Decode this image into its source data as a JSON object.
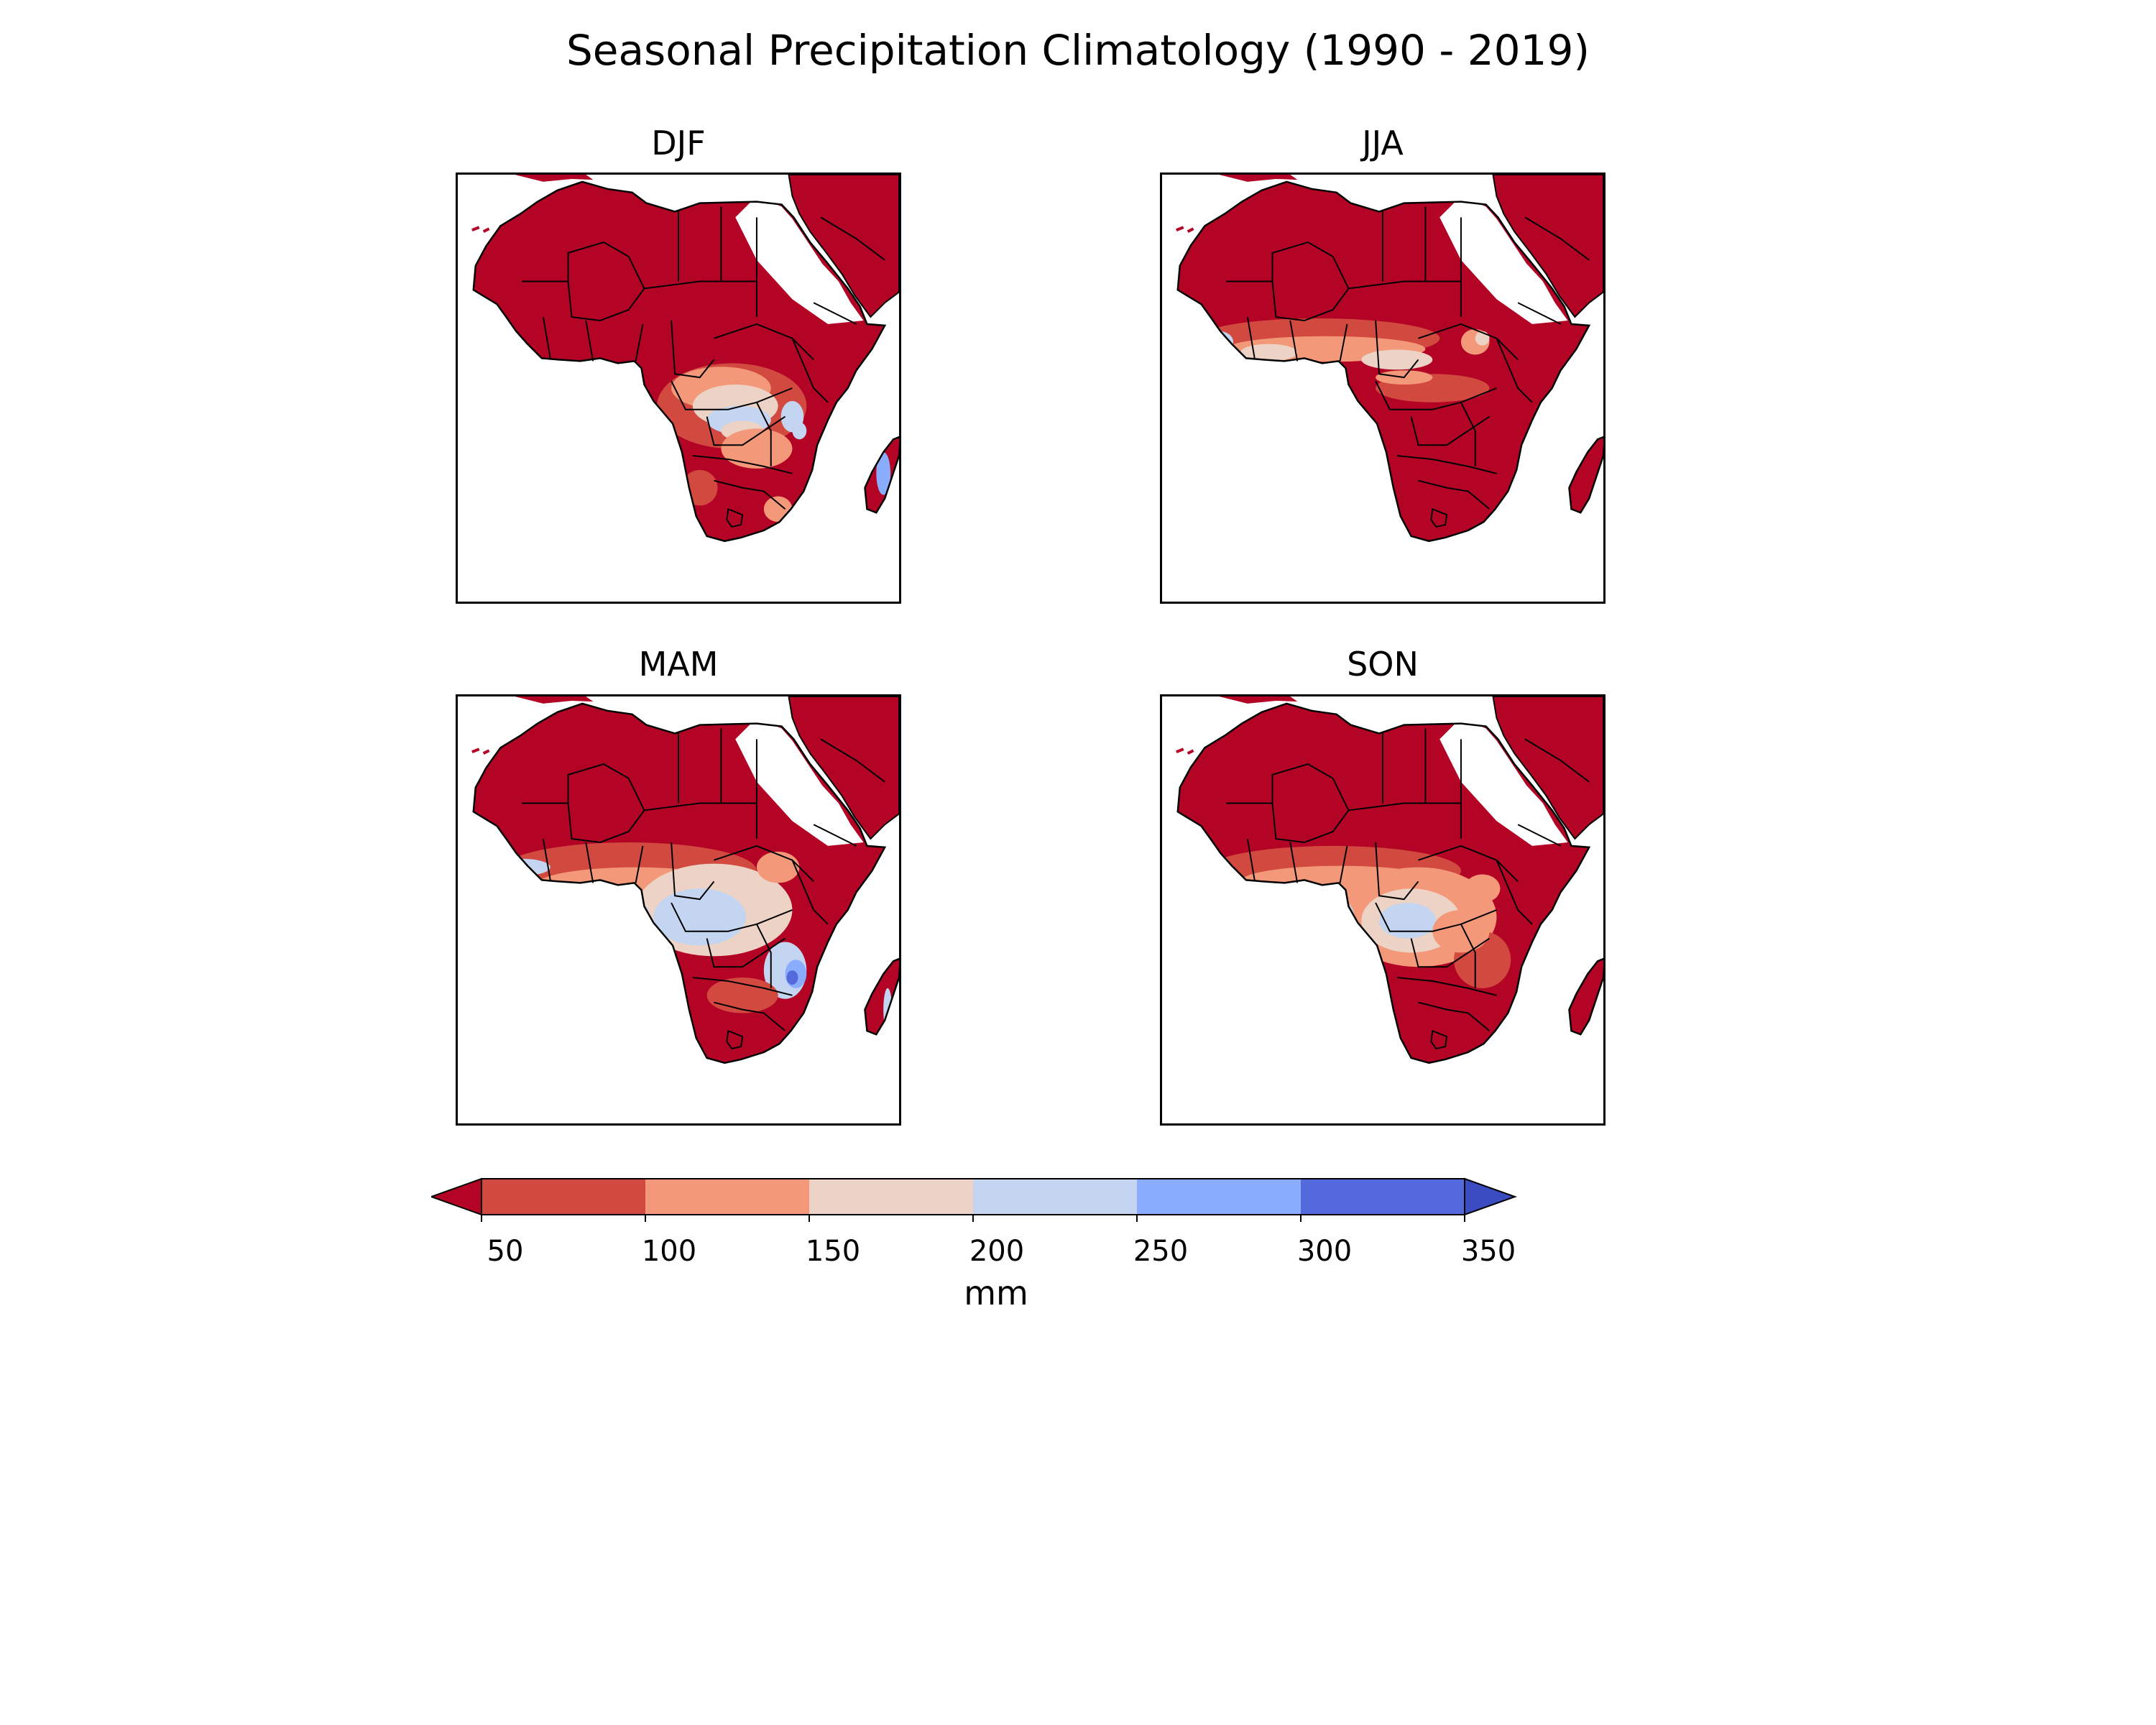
{
  "title": "Seasonal Precipitation Climatology (1990 - 2019)",
  "panels": [
    {
      "id": "djf",
      "title": "DJF",
      "fill_fractions": [
        0.62,
        0.14,
        0.1,
        0.1,
        0.03,
        0.01
      ]
    },
    {
      "id": "jja",
      "title": "JJA",
      "fill_fractions": [
        0.72,
        0.14,
        0.09,
        0.03,
        0.02,
        0.0
      ]
    },
    {
      "id": "mam",
      "title": "MAM",
      "fill_fractions": [
        0.63,
        0.14,
        0.11,
        0.08,
        0.03,
        0.01
      ]
    },
    {
      "id": "son",
      "title": "SON",
      "fill_fractions": [
        0.64,
        0.16,
        0.1,
        0.08,
        0.02,
        0.0
      ]
    }
  ],
  "colorbar": {
    "unit": "mm",
    "ticks": [
      "50",
      "100",
      "150",
      "200",
      "250",
      "300",
      "350"
    ],
    "levels": [
      50,
      100,
      150,
      200,
      250,
      300,
      350
    ],
    "extend": "both",
    "colors": {
      "under": "#b40426",
      "bins": [
        "#d1493f",
        "#f39979",
        "#ecd3c5",
        "#c3d5f0",
        "#89acfc",
        "#5469db"
      ],
      "over": "#3b4cc0"
    }
  },
  "map_style": {
    "land_base": "#b40426",
    "border": "#000000",
    "ocean": "#ffffff"
  }
}
